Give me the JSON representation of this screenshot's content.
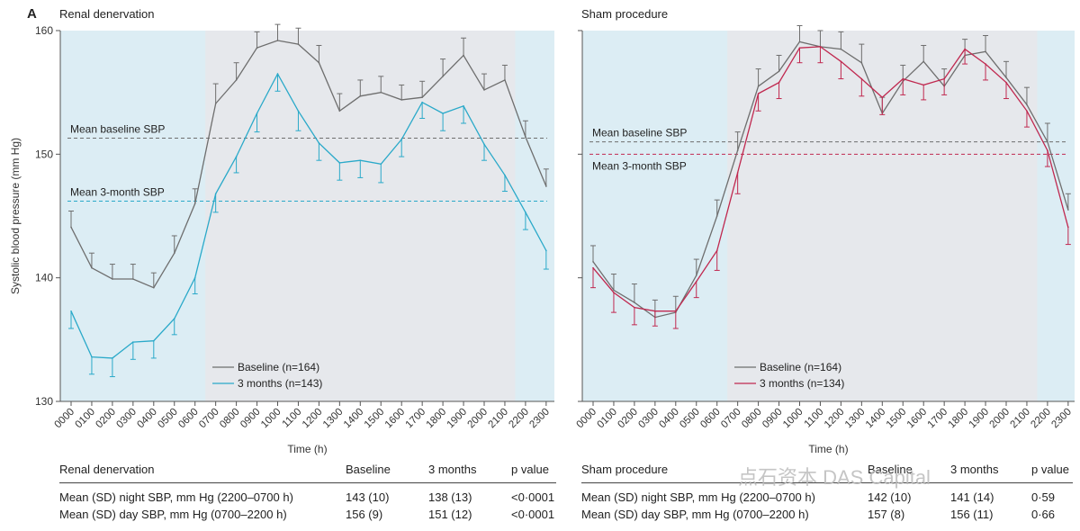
{
  "figure": {
    "panel_letter": "A",
    "watermark": "点石资本 DAS Capital",
    "colors": {
      "baseline_line": "#6e6e6e",
      "rdn_line": "#2aa9c9",
      "sham_line": "#c0284f",
      "night_fill": "#dcedf4",
      "day_fill": "#e6e8ec",
      "grid": "#888888"
    }
  },
  "chart_data": [
    {
      "type": "line",
      "title": "Renal denervation",
      "xlabel": "Time (h)",
      "ylabel": "Systolic blood pressure (mm Hg)",
      "ylim": [
        130,
        160
      ],
      "yticks": [
        130,
        140,
        150,
        160
      ],
      "categories": [
        "0000",
        "0100",
        "0200",
        "0300",
        "0400",
        "0500",
        "0600",
        "0700",
        "0800",
        "0900",
        "1000",
        "1100",
        "1200",
        "1300",
        "1400",
        "1500",
        "1600",
        "1700",
        "1800",
        "1900",
        "2000",
        "2100",
        "2200",
        "2300"
      ],
      "night_shading": "0000–0630 and 2130–2330 (light blue); day 0630–2130 (grey)",
      "reference_lines": [
        {
          "label": "Mean baseline SBP",
          "value": 151.3,
          "series": "baseline"
        },
        {
          "label": "Mean 3-month SBP",
          "value": 146.2,
          "series": "followup"
        }
      ],
      "legend": {
        "position": "bottom-center"
      },
      "series": [
        {
          "name": "Baseline (n=164)",
          "key": "baseline",
          "values": [
            144.1,
            140.8,
            139.9,
            139.9,
            139.2,
            142.0,
            146.0,
            154.1,
            156.0,
            158.6,
            159.2,
            158.9,
            157.4,
            153.5,
            154.7,
            155.0,
            154.4,
            154.6,
            156.3,
            158.0,
            155.2,
            156.0,
            151.4,
            147.4
          ],
          "errors": [
            1.3,
            1.2,
            1.2,
            1.2,
            1.2,
            1.4,
            1.2,
            1.6,
            1.4,
            1.3,
            1.3,
            1.3,
            1.4,
            1.4,
            1.3,
            1.3,
            1.2,
            1.3,
            1.4,
            1.4,
            1.3,
            1.2,
            1.3,
            1.4
          ]
        },
        {
          "name": "3 months (n=143)",
          "key": "followup",
          "values": [
            137.3,
            133.6,
            133.5,
            134.8,
            134.9,
            136.7,
            140.0,
            146.8,
            149.8,
            153.3,
            156.5,
            153.5,
            150.9,
            149.3,
            149.5,
            149.2,
            151.2,
            154.2,
            153.3,
            153.9,
            150.8,
            148.3,
            145.3,
            142.2
          ],
          "errors": [
            1.4,
            1.4,
            1.5,
            1.4,
            1.4,
            1.3,
            1.3,
            1.5,
            1.3,
            1.5,
            1.4,
            1.6,
            1.4,
            1.4,
            1.4,
            1.5,
            1.4,
            1.3,
            1.4,
            1.4,
            1.3,
            1.3,
            1.4,
            1.5
          ]
        }
      ]
    },
    {
      "type": "line",
      "title": "Sham procedure",
      "xlabel": "Time (h)",
      "ylabel": "",
      "ylim": [
        130,
        160
      ],
      "yticks": [
        130,
        140,
        150,
        160
      ],
      "categories": [
        "0000",
        "0100",
        "0200",
        "0300",
        "0400",
        "0500",
        "0600",
        "0700",
        "0800",
        "0900",
        "1000",
        "1100",
        "1200",
        "1300",
        "1400",
        "1500",
        "1600",
        "1700",
        "1800",
        "1900",
        "2000",
        "2100",
        "2200",
        "2300"
      ],
      "night_shading": "0000–0630 and 2130–2330 (light blue); day 0630–2130 (grey)",
      "reference_lines": [
        {
          "label": "Mean baseline SBP",
          "value": 151.0,
          "series": "baseline"
        },
        {
          "label": "Mean 3-month SBP",
          "value": 150.0,
          "series": "followup"
        }
      ],
      "legend": {
        "position": "bottom-center"
      },
      "series": [
        {
          "name": "Baseline (n=164)",
          "key": "baseline",
          "values": [
            141.3,
            139.0,
            138.0,
            136.8,
            137.2,
            140.2,
            145.0,
            150.3,
            155.5,
            156.7,
            159.1,
            158.7,
            158.5,
            157.4,
            153.3,
            155.9,
            157.5,
            155.5,
            158.0,
            158.3,
            156.2,
            154.0,
            151.0,
            145.5
          ],
          "errors": [
            1.3,
            1.3,
            1.5,
            1.4,
            1.3,
            1.3,
            1.3,
            1.5,
            1.4,
            1.3,
            1.3,
            1.3,
            1.4,
            1.5,
            1.3,
            1.3,
            1.3,
            1.4,
            1.3,
            1.3,
            1.3,
            1.4,
            1.5,
            1.3
          ]
        },
        {
          "name": "3 months (n=134)",
          "key": "followup",
          "values": [
            140.8,
            138.8,
            137.6,
            137.3,
            137.3,
            139.7,
            142.2,
            148.5,
            154.9,
            155.8,
            158.6,
            158.7,
            157.5,
            156.1,
            154.6,
            156.1,
            155.6,
            156.1,
            158.5,
            157.3,
            155.8,
            153.5,
            150.3,
            144.1
          ],
          "errors": [
            1.6,
            1.6,
            1.4,
            1.2,
            1.4,
            1.3,
            1.6,
            1.7,
            1.4,
            1.3,
            1.2,
            1.3,
            1.4,
            1.4,
            1.4,
            1.3,
            1.2,
            1.3,
            1.2,
            1.3,
            1.3,
            1.3,
            1.3,
            1.4
          ]
        }
      ]
    }
  ],
  "tables": [
    {
      "title": "Renal denervation",
      "headers": {
        "col1": "Baseline",
        "col2": "3 months",
        "col3": "p value"
      },
      "rows": [
        {
          "label": "Mean (SD) night SBP, mm Hg (2200–0700 h)",
          "col1": "143 (10)",
          "col2": "138 (13)",
          "col3": "<0·0001"
        },
        {
          "label": "Mean (SD) day SBP, mm Hg (0700–2200 h)",
          "col1": "156 (9)",
          "col2": "151 (12)",
          "col3": "<0·0001"
        }
      ]
    },
    {
      "title": "Sham procedure",
      "headers": {
        "col1": "Baseline",
        "col2": "3 months",
        "col3": "p value"
      },
      "rows": [
        {
          "label": "Mean (SD) night SBP, mm Hg (2200–0700 h)",
          "col1": "142 (10)",
          "col2": "141 (14)",
          "col3": "0·59"
        },
        {
          "label": "Mean (SD) day SBP, mm Hg (0700–2200 h)",
          "col1": "157 (8)",
          "col2": "156 (11)",
          "col3": "0·66"
        }
      ]
    }
  ]
}
